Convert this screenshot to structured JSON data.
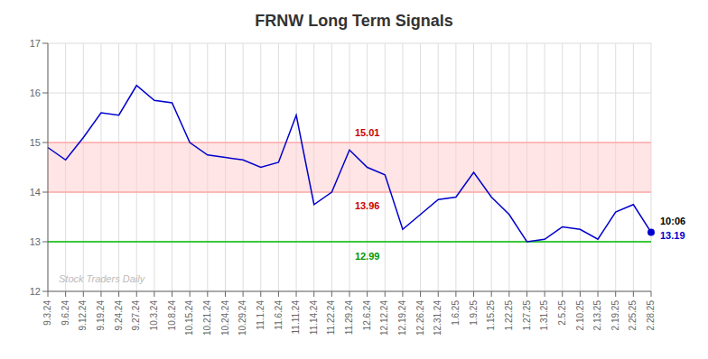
{
  "chart_data": {
    "type": "line",
    "title": "FRNW Long Term Signals",
    "categories": [
      "9.3.24",
      "9.6.24",
      "9.12.24",
      "9.19.24",
      "9.24.24",
      "9.27.24",
      "10.3.24",
      "10.8.24",
      "10.15.24",
      "10.21.24",
      "10.24.24",
      "10.29.24",
      "11.1.24",
      "11.6.24",
      "11.11.24",
      "11.14.24",
      "11.22.24",
      "11.29.24",
      "12.6.24",
      "12.12.24",
      "12.19.24",
      "12.26.24",
      "12.31.24",
      "1.6.25",
      "1.9.25",
      "1.15.25",
      "1.22.25",
      "1.27.25",
      "1.31.25",
      "2.5.25",
      "2.10.25",
      "2.13.25",
      "2.19.25",
      "2.25.25",
      "2.28.25"
    ],
    "values": [
      14.9,
      14.65,
      15.1,
      15.6,
      15.55,
      16.15,
      15.85,
      15.8,
      15.0,
      14.75,
      14.7,
      14.65,
      14.5,
      14.6,
      15.55,
      13.75,
      14.0,
      14.85,
      14.5,
      14.35,
      13.25,
      13.55,
      13.85,
      13.9,
      14.4,
      13.9,
      13.55,
      13.0,
      13.05,
      13.3,
      13.25,
      13.05,
      13.6,
      13.75,
      13.19
    ],
    "color": "#0000cc",
    "ylim": [
      12,
      17
    ],
    "yticks": [
      12,
      13,
      14,
      15,
      16,
      17
    ],
    "grid": true,
    "reference_lines": [
      {
        "value": 13,
        "color": "#00bb00"
      },
      {
        "value": 14,
        "color": "#ffaaaa"
      },
      {
        "value": 15,
        "color": "#ffaaaa"
      }
    ],
    "bands": [
      {
        "from": 14,
        "to": 15,
        "color": "#ffcccc"
      }
    ],
    "annotations": [
      {
        "text": "15.01",
        "x": "12.6.24",
        "y": 15.01,
        "color": "#cc0000"
      },
      {
        "text": "13.96",
        "x": "12.6.24",
        "y": 13.96,
        "color": "#cc0000"
      },
      {
        "text": "12.99",
        "x": "12.6.24",
        "y": 12.99,
        "color": "#009900"
      },
      {
        "text": "10:06",
        "x": "2.28.25",
        "y": 13.19,
        "color": "#000000"
      },
      {
        "text": "13.19",
        "x": "2.28.25",
        "y": 13.19,
        "color": "#0000cc"
      }
    ],
    "watermark": {
      "text": "Stock Traders Daily",
      "color": "#bbbbbb"
    }
  }
}
